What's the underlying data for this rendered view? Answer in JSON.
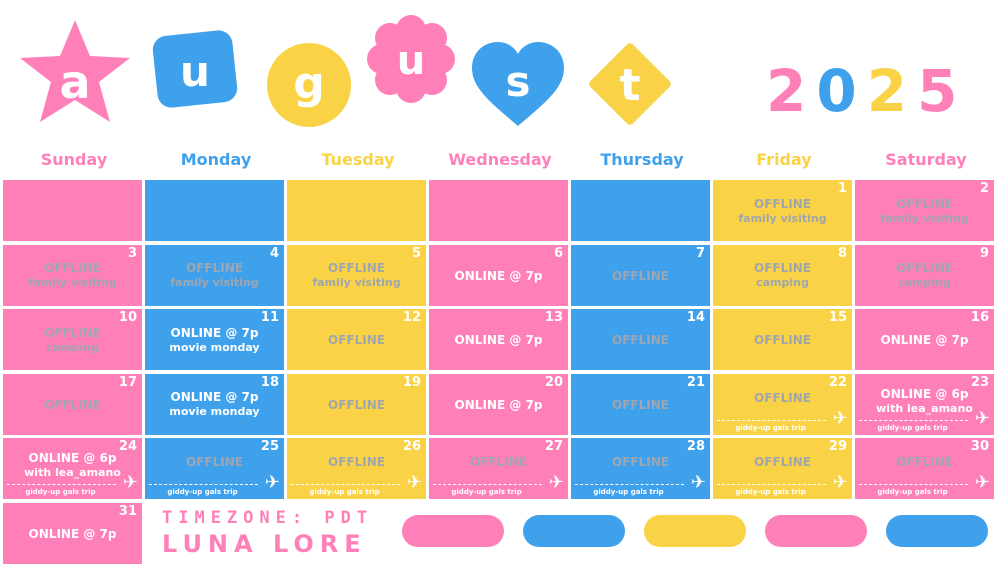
{
  "header": {
    "letters": [
      "a",
      "u",
      "g",
      "u",
      "s",
      "t"
    ],
    "year_digits": [
      "2",
      "0",
      "2",
      "5"
    ]
  },
  "colors": {
    "pink": "#ff7fb9",
    "blue": "#3fa1eb",
    "yellow": "#f9d345",
    "grey": "#a0a6b0",
    "white": "#ffffff"
  },
  "days": [
    "Sunday",
    "Monday",
    "Tuesday",
    "Wednesday",
    "Thursday",
    "Friday",
    "Saturday"
  ],
  "cells": [
    {
      "color": "pink",
      "num": "",
      "lines": []
    },
    {
      "color": "blue",
      "num": "",
      "lines": []
    },
    {
      "color": "yellow",
      "num": "",
      "lines": []
    },
    {
      "color": "pink",
      "num": "",
      "lines": []
    },
    {
      "color": "blue",
      "num": "",
      "lines": []
    },
    {
      "color": "yellow",
      "num": "1",
      "lines": [
        "OFFLINE",
        "family visiting"
      ],
      "tone": "grey"
    },
    {
      "color": "pink",
      "num": "2",
      "lines": [
        "OFFLINE",
        "family visiting"
      ],
      "tone": "grey"
    },
    {
      "color": "pink",
      "num": "3",
      "lines": [
        "OFFLINE",
        "family visiting"
      ],
      "tone": "grey"
    },
    {
      "color": "blue",
      "num": "4",
      "lines": [
        "OFFLINE",
        "family visiting"
      ],
      "tone": "grey"
    },
    {
      "color": "yellow",
      "num": "5",
      "lines": [
        "OFFLINE",
        "family visiting"
      ],
      "tone": "grey"
    },
    {
      "color": "pink",
      "num": "6",
      "lines": [
        "ONLINE @ 7p"
      ],
      "tone": "white"
    },
    {
      "color": "blue",
      "num": "7",
      "lines": [
        "OFFLINE"
      ],
      "tone": "grey"
    },
    {
      "color": "yellow",
      "num": "8",
      "lines": [
        "OFFLINE",
        "camping"
      ],
      "tone": "grey"
    },
    {
      "color": "pink",
      "num": "9",
      "lines": [
        "OFFLINE",
        "camping"
      ],
      "tone": "grey"
    },
    {
      "color": "pink",
      "num": "10",
      "lines": [
        "OFFLINE",
        "camping"
      ],
      "tone": "grey"
    },
    {
      "color": "blue",
      "num": "11",
      "lines": [
        "ONLINE @ 7p",
        "movie monday"
      ],
      "tone": "white"
    },
    {
      "color": "yellow",
      "num": "12",
      "lines": [
        "OFFLINE"
      ],
      "tone": "grey"
    },
    {
      "color": "pink",
      "num": "13",
      "lines": [
        "ONLINE @ 7p"
      ],
      "tone": "white"
    },
    {
      "color": "blue",
      "num": "14",
      "lines": [
        "OFFLINE"
      ],
      "tone": "grey"
    },
    {
      "color": "yellow",
      "num": "15",
      "lines": [
        "OFFLINE"
      ],
      "tone": "grey"
    },
    {
      "color": "pink",
      "num": "16",
      "lines": [
        "ONLINE @ 7p"
      ],
      "tone": "white"
    },
    {
      "color": "pink",
      "num": "17",
      "lines": [
        "OFFLINE"
      ],
      "tone": "grey"
    },
    {
      "color": "blue",
      "num": "18",
      "lines": [
        "ONLINE @ 7p",
        "movie monday"
      ],
      "tone": "white"
    },
    {
      "color": "yellow",
      "num": "19",
      "lines": [
        "OFFLINE"
      ],
      "tone": "grey"
    },
    {
      "color": "pink",
      "num": "20",
      "lines": [
        "ONLINE @ 7p"
      ],
      "tone": "white"
    },
    {
      "color": "blue",
      "num": "21",
      "lines": [
        "OFFLINE"
      ],
      "tone": "grey"
    },
    {
      "color": "yellow",
      "num": "22",
      "lines": [
        "OFFLINE"
      ],
      "tone": "grey",
      "trip": "giddy-up gals trip"
    },
    {
      "color": "pink",
      "num": "23",
      "lines": [
        "ONLINE @ 6p",
        "with lea_amano"
      ],
      "tone": "white",
      "trip": "giddy-up gals trip"
    },
    {
      "color": "pink",
      "num": "24",
      "lines": [
        "ONLINE @ 6p",
        "with lea_amano"
      ],
      "tone": "white",
      "trip": "giddy-up gals trip"
    },
    {
      "color": "blue",
      "num": "25",
      "lines": [
        "OFFLINE"
      ],
      "tone": "grey",
      "trip": "giddy-up gals trip"
    },
    {
      "color": "yellow",
      "num": "26",
      "lines": [
        "OFFLINE"
      ],
      "tone": "grey",
      "trip": "giddy-up gals trip"
    },
    {
      "color": "pink",
      "num": "27",
      "lines": [
        "OFFLINE"
      ],
      "tone": "grey",
      "trip": "giddy-up gals trip"
    },
    {
      "color": "blue",
      "num": "28",
      "lines": [
        "OFFLINE"
      ],
      "tone": "grey",
      "trip": "giddy-up gals trip"
    },
    {
      "color": "yellow",
      "num": "29",
      "lines": [
        "OFFLINE"
      ],
      "tone": "grey",
      "trip": "giddy-up gals trip"
    },
    {
      "color": "pink",
      "num": "30",
      "lines": [
        "OFFLINE"
      ],
      "tone": "grey",
      "trip": "giddy-up gals trip"
    },
    {
      "color": "pink",
      "num": "31",
      "lines": [
        "ONLINE @ 7p"
      ],
      "tone": "white"
    }
  ],
  "footer": {
    "timezone": "TIMEZONE: PDT",
    "brand": "LUNA LORE",
    "pills": [
      "pink",
      "blue",
      "yellow",
      "pink",
      "blue"
    ]
  }
}
